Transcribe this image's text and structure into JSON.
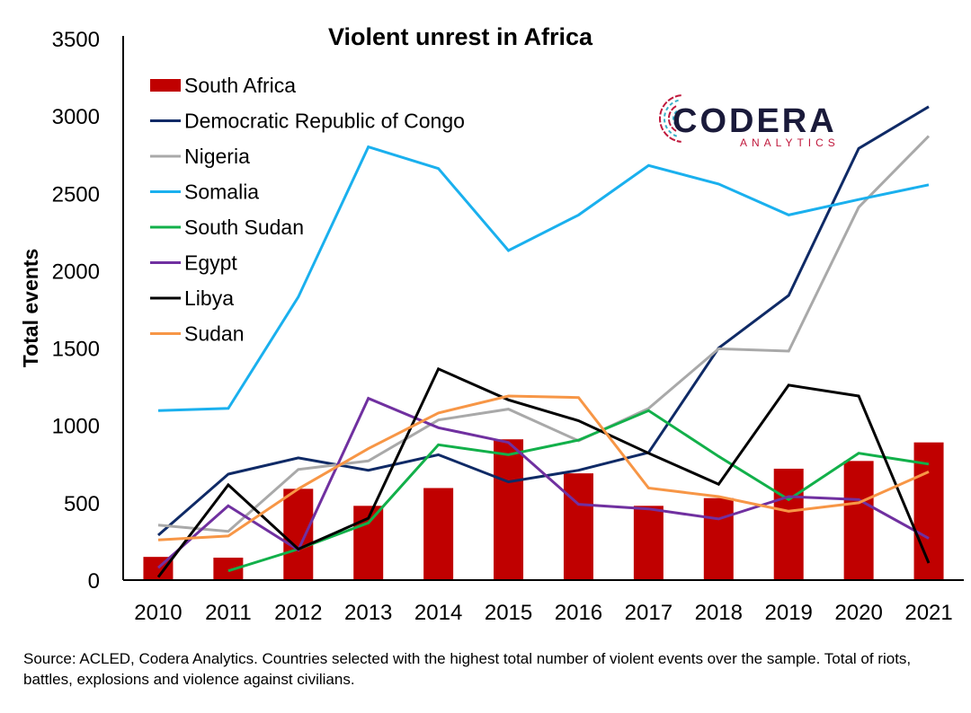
{
  "chart_data": {
    "type": "bar+line",
    "title": "Violent unrest in Africa",
    "ylabel": "Total events",
    "xlabel": "",
    "ylim": [
      0,
      3500
    ],
    "yticks": [
      0,
      500,
      1000,
      1500,
      2000,
      2500,
      3000,
      3500
    ],
    "categories": [
      "2010",
      "2011",
      "2012",
      "2013",
      "2014",
      "2015",
      "2016",
      "2017",
      "2018",
      "2019",
      "2020",
      "2021"
    ],
    "grid": false,
    "legend_position": "top-left",
    "bar_series": {
      "name": "South Africa",
      "color": "#c00000",
      "values": [
        150,
        145,
        590,
        480,
        595,
        910,
        690,
        480,
        530,
        720,
        770,
        890
      ]
    },
    "series": [
      {
        "name": "Democratic Republic of Congo",
        "color": "#0f2a66",
        "values": [
          290,
          685,
          790,
          710,
          810,
          635,
          710,
          825,
          1500,
          1840,
          2790,
          3060
        ]
      },
      {
        "name": "Nigeria",
        "color": "#a9a9a9",
        "values": [
          355,
          315,
          715,
          770,
          1035,
          1105,
          900,
          1110,
          1495,
          1480,
          2410,
          2870
        ]
      },
      {
        "name": "Somalia",
        "color": "#1ab0ee",
        "values": [
          1095,
          1110,
          1830,
          2800,
          2660,
          2130,
          2360,
          2680,
          2560,
          2360,
          2460,
          2555
        ]
      },
      {
        "name": "South Sudan",
        "color": "#12b04a",
        "values": [
          null,
          60,
          200,
          370,
          875,
          810,
          905,
          1095,
          800,
          520,
          820,
          750
        ]
      },
      {
        "name": "Egypt",
        "color": "#7030a0",
        "values": [
          80,
          480,
          195,
          1175,
          985,
          890,
          490,
          460,
          395,
          540,
          520,
          270
        ]
      },
      {
        "name": "Libya",
        "color": "#000000",
        "values": [
          20,
          615,
          200,
          400,
          1365,
          1165,
          1030,
          820,
          620,
          1260,
          1190,
          110
        ]
      },
      {
        "name": "Sudan",
        "color": "#f79646",
        "values": [
          260,
          285,
          590,
          850,
          1080,
          1190,
          1180,
          595,
          540,
          445,
          500,
          700
        ]
      }
    ]
  },
  "logo": {
    "name": "CODERA",
    "sub": "ANALYTICS",
    "colors": [
      "#c0183c",
      "#1a1a3a",
      "#3ab0c8"
    ]
  },
  "footer": {
    "source": "Source: ACLED, Codera Analytics. Countries selected with the highest total number of violent events over the sample. Total of riots, battles, explosions and violence against civilians."
  }
}
